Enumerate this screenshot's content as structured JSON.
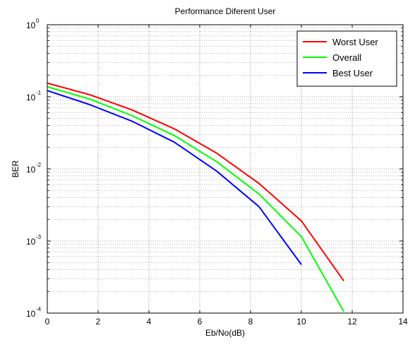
{
  "chart_data": {
    "type": "line",
    "title": "Performance Diferent User",
    "xlabel": "Eb/No(dB)",
    "ylabel": "BER",
    "xlim": [
      0,
      14
    ],
    "ylim": [
      0.0001,
      1
    ],
    "yscale": "log",
    "grid": true,
    "legend_position": "top-right",
    "xticks": [
      0,
      2,
      4,
      6,
      8,
      10,
      12,
      14
    ],
    "yticks": [
      {
        "value": 1,
        "base": "10",
        "exp": "0"
      },
      {
        "value": 0.1,
        "base": "10",
        "exp": "-1"
      },
      {
        "value": 0.01,
        "base": "10",
        "exp": "-2"
      },
      {
        "value": 0.001,
        "base": "10",
        "exp": "-3"
      },
      {
        "value": 0.0001,
        "base": "10",
        "exp": "-4"
      }
    ],
    "series": [
      {
        "name": "Worst User",
        "color": "#ff0000",
        "x": [
          0,
          1.67,
          3.33,
          5,
          6.67,
          8.33,
          10,
          11.67
        ],
        "y": [
          0.155,
          0.107,
          0.066,
          0.036,
          0.0165,
          0.0063,
          0.0019,
          0.00028
        ]
      },
      {
        "name": "Overall",
        "color": "#00ff00",
        "x": [
          0,
          1.67,
          3.33,
          5,
          6.67,
          8.33,
          10,
          11.67
        ],
        "y": [
          0.138,
          0.093,
          0.055,
          0.029,
          0.0126,
          0.0045,
          0.00115,
          0.000105
        ]
      },
      {
        "name": "Best User",
        "color": "#0000ff",
        "x": [
          0,
          1.67,
          3.33,
          5,
          6.67,
          8.33,
          10
        ],
        "y": [
          0.122,
          0.078,
          0.046,
          0.0235,
          0.0093,
          0.003,
          0.00047
        ]
      }
    ]
  }
}
